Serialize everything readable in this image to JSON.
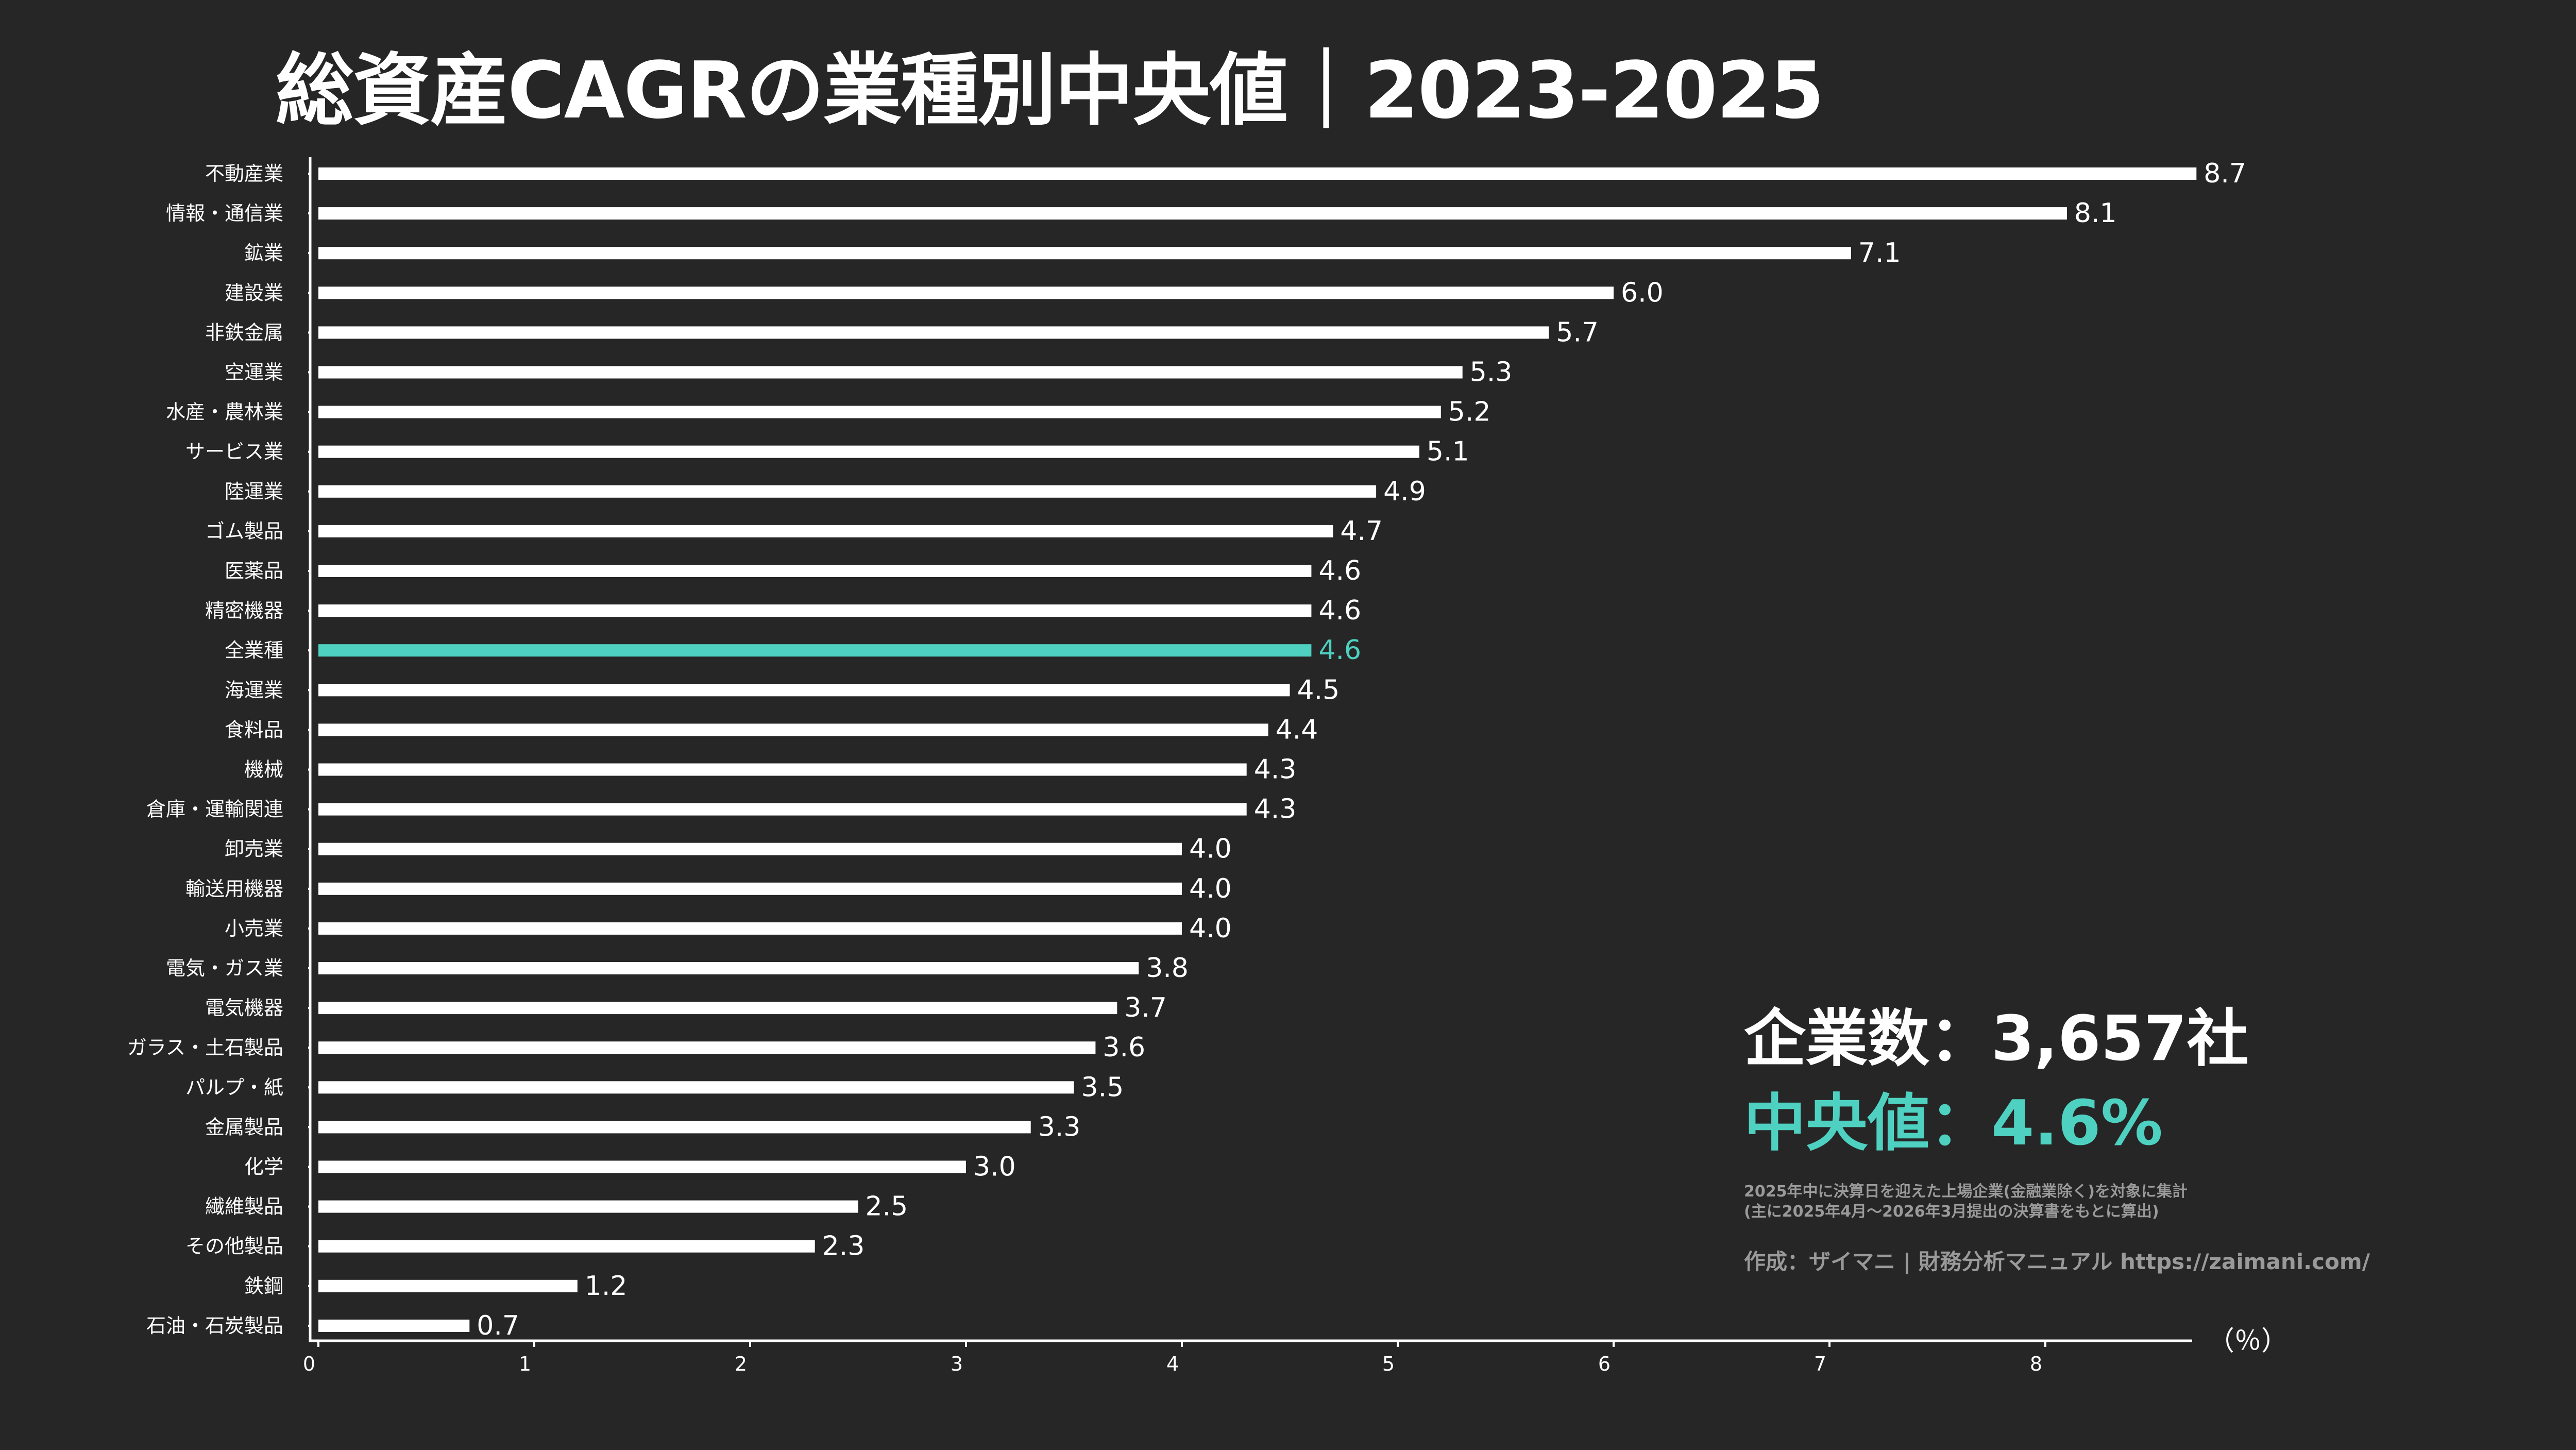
{
  "title": "総資産CAGRの業種別中央値｜2023-2025",
  "colors": {
    "background": "#262626",
    "bar": "#ffffff",
    "highlight": "#4fd1c1",
    "text": "#ffffff",
    "note": "#9a9a9a"
  },
  "stats": {
    "count_text": "企業数：3,657社",
    "median_text": "中央値：4.6%"
  },
  "notes": {
    "line1": "2025年中に決算日を迎えた上場企業(金融業除く)を対象に集計",
    "line2": "(主に2025年4月〜2026年3月提出の決算書をもとに算出)"
  },
  "credit": "作成：ザイマニ | 財務分析マニュアル https://zaimani.com/",
  "chart_data": {
    "type": "bar",
    "orientation": "horizontal",
    "title": "総資産CAGRの業種別中央値｜2023-2025",
    "unit": "（％）",
    "xlim": [
      0,
      8.7
    ],
    "xticks": [
      "0",
      "1",
      "2",
      "3",
      "4",
      "5",
      "6",
      "7",
      "8"
    ],
    "highlight_category": "全業種",
    "categories": [
      "不動産業",
      "情報・通信業",
      "鉱業",
      "建設業",
      "非鉄金属",
      "空運業",
      "水産・農林業",
      "サービス業",
      "陸運業",
      "ゴム製品",
      "医薬品",
      "精密機器",
      "全業種",
      "海運業",
      "食料品",
      "機械",
      "倉庫・運輸関連",
      "卸売業",
      "輸送用機器",
      "小売業",
      "電気・ガス業",
      "電気機器",
      "ガラス・土石製品",
      "パルプ・紙",
      "金属製品",
      "化学",
      "繊維製品",
      "その他製品",
      "鉄鋼",
      "石油・石炭製品"
    ],
    "values": [
      8.7,
      8.1,
      7.1,
      6.0,
      5.7,
      5.3,
      5.2,
      5.1,
      4.9,
      4.7,
      4.6,
      4.6,
      4.6,
      4.5,
      4.4,
      4.3,
      4.3,
      4.0,
      4.0,
      4.0,
      3.8,
      3.7,
      3.6,
      3.5,
      3.3,
      3.0,
      2.5,
      2.3,
      1.2,
      0.7
    ],
    "value_labels": [
      "8.7",
      "8.1",
      "7.1",
      "6.0",
      "5.7",
      "5.3",
      "5.2",
      "5.1",
      "4.9",
      "4.7",
      "4.6",
      "4.6",
      "4.6",
      "4.5",
      "4.4",
      "4.3",
      "4.3",
      "4.0",
      "4.0",
      "4.0",
      "3.8",
      "3.7",
      "3.6",
      "3.5",
      "3.3",
      "3.0",
      "2.5",
      "2.3",
      "1.2",
      "0.7"
    ]
  }
}
